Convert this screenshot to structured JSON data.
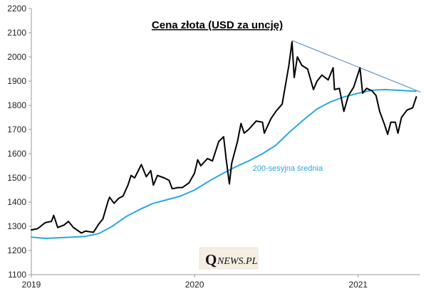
{
  "chart_data": {
    "type": "line",
    "title": "Cena złota (USD za uncję)",
    "xlabel": "",
    "ylabel": "",
    "x_ticks": [
      "2019",
      "2020",
      "2021"
    ],
    "y_ticks": [
      1100,
      1200,
      1300,
      1400,
      1500,
      1600,
      1700,
      1800,
      1900,
      2000,
      2100,
      2200
    ],
    "xlim": [
      "2019-01-01",
      "2021-05-20"
    ],
    "ylim": [
      1100,
      2200
    ],
    "grid": false,
    "series": [
      {
        "key": "price",
        "color": "#000000",
        "points": [
          [
            "2019-01-01",
            1285
          ],
          [
            "2019-01-15",
            1290
          ],
          [
            "2019-02-01",
            1315
          ],
          [
            "2019-02-15",
            1320
          ],
          [
            "2019-02-20",
            1345
          ],
          [
            "2019-03-01",
            1295
          ],
          [
            "2019-03-15",
            1305
          ],
          [
            "2019-03-25",
            1320
          ],
          [
            "2019-04-05",
            1295
          ],
          [
            "2019-04-23",
            1272
          ],
          [
            "2019-05-02",
            1280
          ],
          [
            "2019-05-20",
            1275
          ],
          [
            "2019-06-01",
            1310
          ],
          [
            "2019-06-10",
            1330
          ],
          [
            "2019-06-21",
            1400
          ],
          [
            "2019-06-25",
            1420
          ],
          [
            "2019-07-05",
            1395
          ],
          [
            "2019-07-15",
            1415
          ],
          [
            "2019-07-25",
            1425
          ],
          [
            "2019-08-05",
            1470
          ],
          [
            "2019-08-12",
            1510
          ],
          [
            "2019-08-20",
            1500
          ],
          [
            "2019-09-04",
            1555
          ],
          [
            "2019-09-15",
            1505
          ],
          [
            "2019-09-25",
            1530
          ],
          [
            "2019-10-01",
            1470
          ],
          [
            "2019-10-10",
            1510
          ],
          [
            "2019-10-25",
            1500
          ],
          [
            "2019-11-05",
            1490
          ],
          [
            "2019-11-12",
            1455
          ],
          [
            "2019-11-25",
            1460
          ],
          [
            "2019-12-05",
            1460
          ],
          [
            "2019-12-20",
            1480
          ],
          [
            "2020-01-01",
            1520
          ],
          [
            "2020-01-08",
            1575
          ],
          [
            "2020-01-15",
            1550
          ],
          [
            "2020-01-30",
            1580
          ],
          [
            "2020-02-10",
            1570
          ],
          [
            "2020-02-24",
            1650
          ],
          [
            "2020-03-06",
            1670
          ],
          [
            "2020-03-12",
            1575
          ],
          [
            "2020-03-19",
            1475
          ],
          [
            "2020-03-24",
            1560
          ],
          [
            "2020-04-06",
            1650
          ],
          [
            "2020-04-14",
            1725
          ],
          [
            "2020-04-21",
            1685
          ],
          [
            "2020-05-01",
            1700
          ],
          [
            "2020-05-18",
            1735
          ],
          [
            "2020-06-01",
            1730
          ],
          [
            "2020-06-05",
            1685
          ],
          [
            "2020-06-20",
            1745
          ],
          [
            "2020-07-01",
            1775
          ],
          [
            "2020-07-15",
            1805
          ],
          [
            "2020-07-24",
            1900
          ],
          [
            "2020-07-30",
            1965
          ],
          [
            "2020-08-06",
            2062
          ],
          [
            "2020-08-11",
            1915
          ],
          [
            "2020-08-18",
            2000
          ],
          [
            "2020-08-28",
            1965
          ],
          [
            "2020-09-10",
            1950
          ],
          [
            "2020-09-23",
            1865
          ],
          [
            "2020-10-01",
            1900
          ],
          [
            "2020-10-12",
            1925
          ],
          [
            "2020-10-26",
            1905
          ],
          [
            "2020-11-06",
            1955
          ],
          [
            "2020-11-09",
            1865
          ],
          [
            "2020-11-20",
            1870
          ],
          [
            "2020-11-30",
            1775
          ],
          [
            "2020-12-10",
            1840
          ],
          [
            "2020-12-22",
            1875
          ],
          [
            "2021-01-05",
            1955
          ],
          [
            "2021-01-11",
            1850
          ],
          [
            "2021-01-20",
            1870
          ],
          [
            "2021-02-01",
            1860
          ],
          [
            "2021-02-10",
            1840
          ],
          [
            "2021-02-18",
            1775
          ],
          [
            "2021-03-01",
            1720
          ],
          [
            "2021-03-08",
            1680
          ],
          [
            "2021-03-15",
            1730
          ],
          [
            "2021-03-25",
            1730
          ],
          [
            "2021-03-31",
            1685
          ],
          [
            "2021-04-08",
            1750
          ],
          [
            "2021-04-20",
            1780
          ],
          [
            "2021-05-03",
            1790
          ],
          [
            "2021-05-11",
            1835
          ]
        ]
      },
      {
        "key": "ma200",
        "color": "#2aa8e0",
        "points": [
          [
            "2019-01-01",
            1255
          ],
          [
            "2019-02-01",
            1250
          ],
          [
            "2019-03-01",
            1252
          ],
          [
            "2019-04-01",
            1255
          ],
          [
            "2019-05-01",
            1258
          ],
          [
            "2019-06-01",
            1270
          ],
          [
            "2019-07-01",
            1300
          ],
          [
            "2019-08-01",
            1340
          ],
          [
            "2019-09-01",
            1370
          ],
          [
            "2019-10-01",
            1395
          ],
          [
            "2019-11-01",
            1410
          ],
          [
            "2019-12-01",
            1425
          ],
          [
            "2020-01-01",
            1450
          ],
          [
            "2020-02-01",
            1485
          ],
          [
            "2020-03-01",
            1515
          ],
          [
            "2020-04-01",
            1545
          ],
          [
            "2020-05-01",
            1570
          ],
          [
            "2020-06-01",
            1600
          ],
          [
            "2020-07-01",
            1635
          ],
          [
            "2020-08-01",
            1690
          ],
          [
            "2020-09-01",
            1740
          ],
          [
            "2020-10-01",
            1785
          ],
          [
            "2020-11-01",
            1815
          ],
          [
            "2020-12-01",
            1835
          ],
          [
            "2021-01-01",
            1850
          ],
          [
            "2021-02-01",
            1862
          ],
          [
            "2021-03-01",
            1865
          ],
          [
            "2021-04-01",
            1862
          ],
          [
            "2021-05-10",
            1858
          ]
        ]
      },
      {
        "key": "trendline",
        "color": "#4f81bd",
        "points": [
          [
            "2020-08-06",
            2068
          ],
          [
            "2021-05-20",
            1855
          ]
        ]
      }
    ],
    "annotations": [
      {
        "text": "200-sesyjna średnia",
        "at": [
          "2020-05-10",
          1530
        ],
        "color": "#2aa8e0"
      }
    ]
  },
  "watermark": {
    "big": "Q",
    "small": "NEWS.PL"
  }
}
